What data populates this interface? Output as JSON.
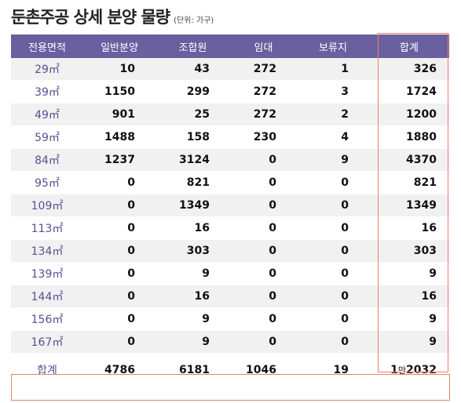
{
  "title": {
    "main": "둔촌주공 상세 분양 물량",
    "unit": "(단위: 가구)"
  },
  "headers": [
    "전용면적",
    "일반분양",
    "조합원",
    "임대",
    "보류지",
    "합계"
  ],
  "rows": [
    {
      "area": "29㎡",
      "general": "10",
      "members": "43",
      "rental": "272",
      "reserved": "1",
      "total": "326"
    },
    {
      "area": "39㎡",
      "general": "1150",
      "members": "299",
      "rental": "272",
      "reserved": "3",
      "total": "1724"
    },
    {
      "area": "49㎡",
      "general": "901",
      "members": "25",
      "rental": "272",
      "reserved": "2",
      "total": "1200"
    },
    {
      "area": "59㎡",
      "general": "1488",
      "members": "158",
      "rental": "230",
      "reserved": "4",
      "total": "1880"
    },
    {
      "area": "84㎡",
      "general": "1237",
      "members": "3124",
      "rental": "0",
      "reserved": "9",
      "total": "4370"
    },
    {
      "area": "95㎡",
      "general": "0",
      "members": "821",
      "rental": "0",
      "reserved": "0",
      "total": "821"
    },
    {
      "area": "109㎡",
      "general": "0",
      "members": "1349",
      "rental": "0",
      "reserved": "0",
      "total": "1349"
    },
    {
      "area": "113㎡",
      "general": "0",
      "members": "16",
      "rental": "0",
      "reserved": "0",
      "total": "16"
    },
    {
      "area": "134㎡",
      "general": "0",
      "members": "303",
      "rental": "0",
      "reserved": "0",
      "total": "303"
    },
    {
      "area": "139㎡",
      "general": "0",
      "members": "9",
      "rental": "0",
      "reserved": "0",
      "total": "9"
    },
    {
      "area": "144㎡",
      "general": "0",
      "members": "16",
      "rental": "0",
      "reserved": "0",
      "total": "16"
    },
    {
      "area": "156㎡",
      "general": "0",
      "members": "9",
      "rental": "0",
      "reserved": "0",
      "total": "9"
    },
    {
      "area": "167㎡",
      "general": "0",
      "members": "9",
      "rental": "0",
      "reserved": "0",
      "total": "9"
    }
  ],
  "footer": {
    "label": "합계",
    "general": "4786",
    "members": "6181",
    "rental": "1046",
    "reserved": "19",
    "total_prefix": "1",
    "total_mid": "만",
    "total_suffix": "2032"
  },
  "colors": {
    "header_bg": "#6a5f9f",
    "area_text": "#5a4f95",
    "highlight_border": "#e7826a",
    "stripe": "#f1f1f1"
  }
}
